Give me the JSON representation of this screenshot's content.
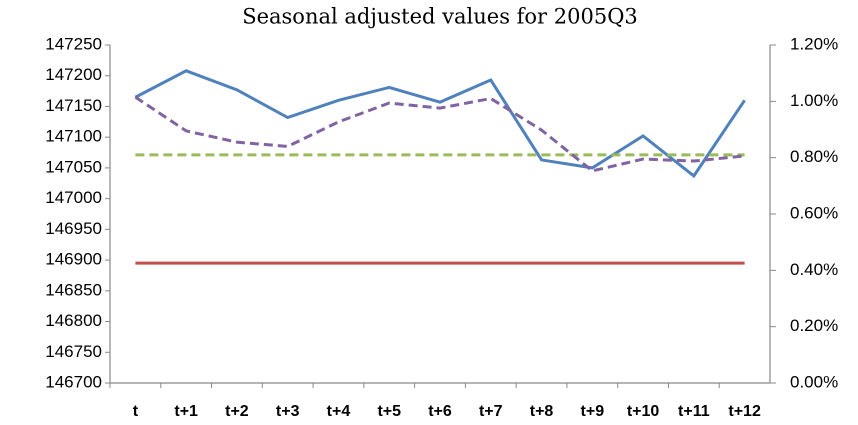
{
  "chart_data": {
    "type": "line",
    "title": "Seasonal adjusted values for 2005Q3",
    "categories": [
      "t",
      "t+1",
      "t+2",
      "t+3",
      "t+4",
      "t+5",
      "t+6",
      "t+7",
      "t+8",
      "t+9",
      "t+10",
      "t+11",
      "t+12"
    ],
    "series": [
      {
        "color": "#4f81bd",
        "dash": "solid",
        "axis": "y",
        "values": [
          147165,
          147208,
          147177,
          147132,
          147160,
          147181,
          147157,
          147193,
          147063,
          147050,
          147102,
          147037,
          147160
        ]
      },
      {
        "color": "#c0504d",
        "dash": "solid",
        "axis": "y",
        "values": [
          146895,
          146895,
          146895,
          146895,
          146895,
          146895,
          146895,
          146895,
          146895,
          146895,
          146895,
          146895,
          146895
        ]
      },
      {
        "color": "#9bbb59",
        "dash": "dashed",
        "axis": "y2",
        "values": [
          0.81,
          0.81,
          0.81,
          0.81,
          0.81,
          0.81,
          0.81,
          0.81,
          0.81,
          0.81,
          0.81,
          0.81,
          0.81
        ]
      },
      {
        "color": "#8064a2",
        "dash": "dashed",
        "axis": "y2",
        "values": [
          1.015,
          0.895,
          0.855,
          0.84,
          0.927,
          0.994,
          0.976,
          1.01,
          0.898,
          0.753,
          0.795,
          0.788,
          0.806
        ]
      }
    ],
    "ylim": [
      146700,
      147250
    ],
    "yticks": [
      146700,
      146750,
      146800,
      146850,
      146900,
      146950,
      147000,
      147050,
      147100,
      147150,
      147200,
      147250
    ],
    "y2lim": [
      0,
      1.2
    ],
    "y2ticks": [
      {
        "value": 0,
        "label": "0.00%"
      },
      {
        "value": 0.2,
        "label": "0.20%"
      },
      {
        "value": 0.4,
        "label": "0.40%"
      },
      {
        "value": 0.6,
        "label": "0.60%"
      },
      {
        "value": 0.8,
        "label": "0.80%"
      },
      {
        "value": 1.0,
        "label": "1.00%"
      },
      {
        "value": 1.2,
        "label": "1.20%"
      }
    ],
    "grid": false
  }
}
